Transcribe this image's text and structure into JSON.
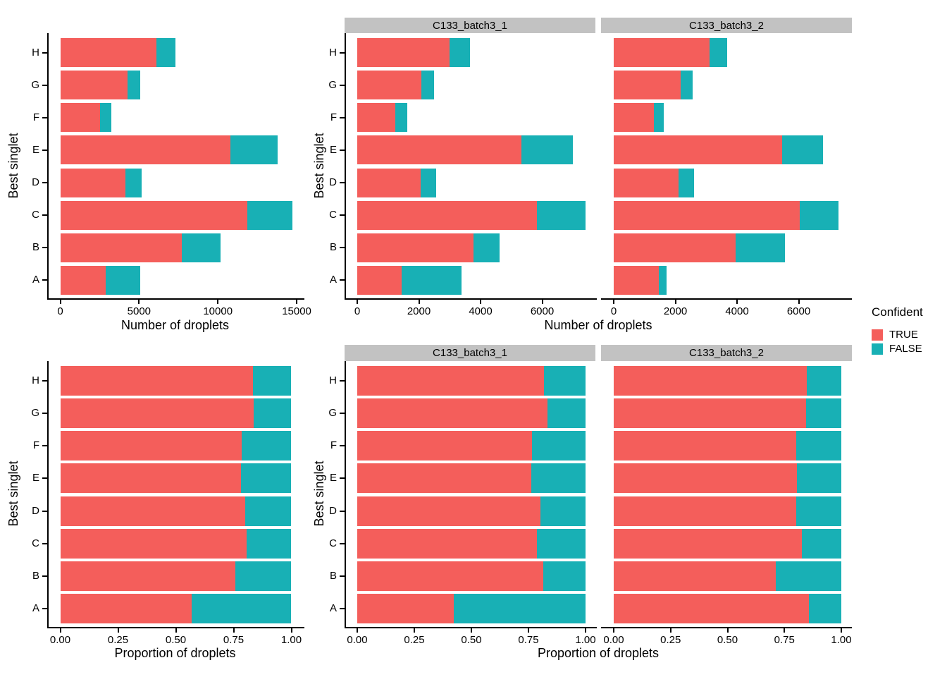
{
  "colors": {
    "true": "#F45E5B",
    "false": "#18B0B5",
    "strip_bg": "#C2C2C2",
    "axis": "#000000"
  },
  "labels": {
    "y_axis_title": "Best singlet",
    "count_axis_title": "Number of droplets",
    "prop_axis_title": "Proportion of droplets",
    "facet_1": "C133_batch3_1",
    "facet_2": "C133_batch3_2"
  },
  "legend": {
    "title": "Confident",
    "items": [
      {
        "label": "TRUE",
        "color_key": "true"
      },
      {
        "label": "FALSE",
        "color_key": "false"
      }
    ]
  },
  "chart_data": [
    {
      "type": "bar",
      "orientation": "horizontal",
      "stacked": true,
      "xlabel": "Number of droplets",
      "ylabel": "Best singlet",
      "legend_title": "Confident",
      "legend_entries": [
        "TRUE",
        "FALSE"
      ],
      "grid": false,
      "panels": [
        {
          "facet": "(all samples, no strip)",
          "categories": [
            "A",
            "B",
            "C",
            "D",
            "E",
            "F",
            "G",
            "H"
          ],
          "xlim": [
            0,
            15500
          ],
          "xticks": [
            0,
            5000,
            10000,
            15000
          ],
          "xtick_labels": [
            "0",
            "5000",
            "10000",
            "15000"
          ],
          "series": [
            {
              "name": "TRUE",
              "values": [
                2900,
                7720,
                11870,
                4155,
                10790,
                2540,
                4250,
                6100
              ]
            },
            {
              "name": "FALSE",
              "values": [
                2190,
                2455,
                2840,
                1030,
                2990,
                700,
                820,
                1220
              ]
            }
          ]
        },
        {
          "facet": "C133_batch3_1",
          "categories": [
            "A",
            "B",
            "C",
            "D",
            "E",
            "F",
            "G",
            "H"
          ],
          "xlim": [
            0,
            7770
          ],
          "xticks": [
            0,
            2000,
            4000,
            6000
          ],
          "xtick_labels": [
            "0",
            "2000",
            "4000",
            "6000"
          ],
          "series": [
            {
              "name": "TRUE",
              "values": [
                1430,
                3770,
                5830,
                2060,
                5320,
                1235,
                2080,
                2990
              ]
            },
            {
              "name": "FALSE",
              "values": [
                1945,
                855,
                1580,
                510,
                1670,
                380,
                420,
                660
              ]
            }
          ]
        },
        {
          "facet": "C133_batch3_2",
          "categories": [
            "A",
            "B",
            "C",
            "D",
            "E",
            "F",
            "G",
            "H"
          ],
          "xlim": [
            0,
            7730
          ],
          "xticks": [
            0,
            2000,
            4000,
            6000
          ],
          "xtick_labels": [
            "0",
            "2000",
            "4000",
            "6000"
          ],
          "series": [
            {
              "name": "TRUE",
              "values": [
                1470,
                3950,
                6040,
                2095,
                5470,
                1305,
                2170,
                3110
              ]
            },
            {
              "name": "FALSE",
              "values": [
                245,
                1600,
                1260,
                520,
                1320,
                320,
                400,
                560
              ]
            }
          ]
        }
      ]
    },
    {
      "type": "bar",
      "orientation": "horizontal",
      "stacked": true,
      "normalized": true,
      "xlabel": "Proportion of droplets",
      "ylabel": "Best singlet",
      "legend_title": "Confident",
      "legend_entries": [
        "TRUE",
        "FALSE"
      ],
      "grid": false,
      "panels": [
        {
          "facet": "(all samples, no strip)",
          "categories": [
            "A",
            "B",
            "C",
            "D",
            "E",
            "F",
            "G",
            "H"
          ],
          "xlim": [
            0,
            1.06
          ],
          "xticks": [
            0,
            0.25,
            0.5,
            0.75,
            1.0
          ],
          "xtick_labels": [
            "0.00",
            "0.25",
            "0.50",
            "0.75",
            "1.00"
          ],
          "series": [
            {
              "name": "TRUE",
              "values": [
                0.57,
                0.759,
                0.807,
                0.801,
                0.783,
                0.784,
                0.838,
                0.833
              ]
            },
            {
              "name": "FALSE",
              "values": [
                0.43,
                0.241,
                0.193,
                0.199,
                0.217,
                0.216,
                0.162,
                0.167
              ]
            }
          ]
        },
        {
          "facet": "C133_batch3_1",
          "categories": [
            "A",
            "B",
            "C",
            "D",
            "E",
            "F",
            "G",
            "H"
          ],
          "xlim": [
            0,
            1.05
          ],
          "xticks": [
            0,
            0.25,
            0.5,
            0.75,
            1.0
          ],
          "xtick_labels": [
            "0.00",
            "0.25",
            "0.50",
            "0.75",
            "1.00"
          ],
          "series": [
            {
              "name": "TRUE",
              "values": [
                0.424,
                0.815,
                0.787,
                0.802,
                0.761,
                0.765,
                0.832,
                0.819
              ]
            },
            {
              "name": "FALSE",
              "values": [
                0.576,
                0.185,
                0.213,
                0.198,
                0.239,
                0.235,
                0.168,
                0.181
              ]
            }
          ]
        },
        {
          "facet": "C133_batch3_2",
          "categories": [
            "A",
            "B",
            "C",
            "D",
            "E",
            "F",
            "G",
            "H"
          ],
          "xlim": [
            0,
            1.05
          ],
          "xticks": [
            0,
            0.25,
            0.5,
            0.75,
            1.0
          ],
          "xtick_labels": [
            "0.00",
            "0.25",
            "0.50",
            "0.75",
            "1.00"
          ],
          "series": [
            {
              "name": "TRUE",
              "values": [
                0.857,
                0.712,
                0.827,
                0.801,
                0.806,
                0.803,
                0.844,
                0.847
              ]
            },
            {
              "name": "FALSE",
              "values": [
                0.143,
                0.288,
                0.173,
                0.199,
                0.194,
                0.197,
                0.156,
                0.153
              ]
            }
          ]
        }
      ]
    }
  ]
}
